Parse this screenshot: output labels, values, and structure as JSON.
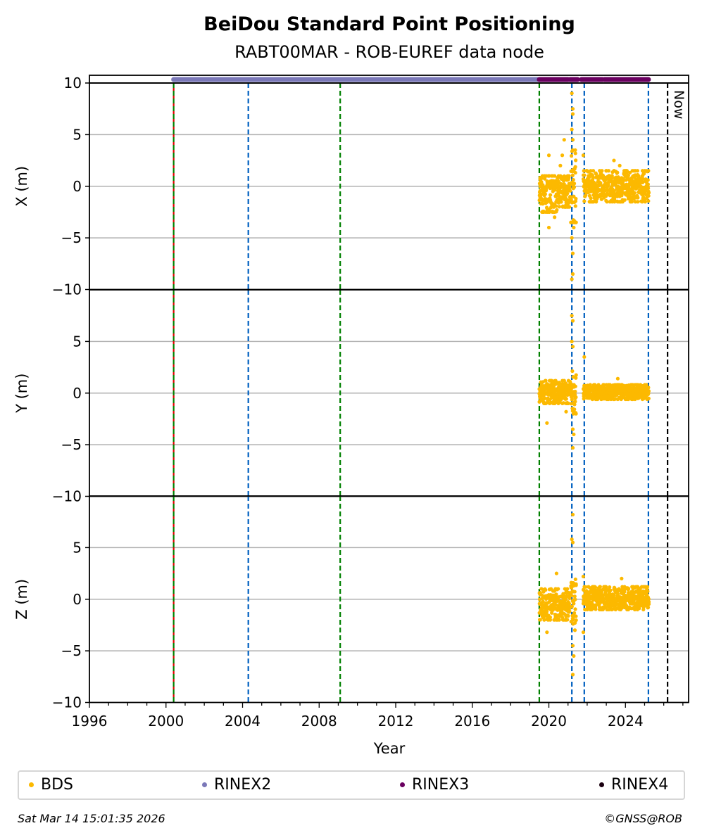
{
  "chart_data": {
    "type": "scatter",
    "title": "BeiDou Standard Point Positioning",
    "subtitle": "RABT00MAR - ROB-EUREF data node",
    "xlabel": "Year",
    "xlim": [
      1996,
      2027.3
    ],
    "x_ticks": [
      "1996",
      "2000",
      "2004",
      "2008",
      "2012",
      "2016",
      "2020",
      "2024"
    ],
    "x_tick_values": [
      1996,
      2000,
      2004,
      2008,
      2012,
      2016,
      2020,
      2024
    ],
    "grid": "horizontal",
    "panels": [
      {
        "ylabel": "X (m)",
        "ylim": [
          -10,
          10
        ],
        "y_ticks": [
          "10",
          "5",
          "0",
          "−5",
          "−10"
        ],
        "y_tick_values": [
          10,
          5,
          0,
          -5,
          -10
        ],
        "bands": [
          [
            2019.5,
            2020.5,
            -2.5,
            1.0
          ],
          [
            2020.5,
            2021.1,
            -2.0,
            1.0
          ],
          [
            2021.15,
            2021.4,
            -3.5,
            3.5
          ],
          [
            2021.8,
            2025.2,
            -1.5,
            1.5
          ]
        ],
        "outliers": [
          [
            2020.0,
            3.0
          ],
          [
            2020.0,
            -4.0
          ],
          [
            2020.3,
            -3.0
          ],
          [
            2020.6,
            2.0
          ],
          [
            2020.8,
            4.5
          ],
          [
            2020.7,
            3.0
          ],
          [
            2021.2,
            9.0
          ],
          [
            2021.25,
            7.5
          ],
          [
            2021.25,
            7.0
          ],
          [
            2021.2,
            5.5
          ],
          [
            2021.25,
            4.5
          ],
          [
            2021.2,
            -5.0
          ],
          [
            2021.25,
            -6.5
          ],
          [
            2021.25,
            -8.5
          ],
          [
            2021.2,
            -9.0
          ],
          [
            2021.3,
            -4.0
          ],
          [
            2021.8,
            3.0
          ],
          [
            2023.4,
            2.5
          ],
          [
            2023.7,
            2.0
          ]
        ]
      },
      {
        "ylabel": "Y (m)",
        "ylim": [
          -10,
          10
        ],
        "y_ticks": [
          "5",
          "0",
          "−5",
          "−10"
        ],
        "y_tick_values": [
          5,
          0,
          -5,
          -10
        ],
        "bands": [
          [
            2019.5,
            2021.1,
            -1.0,
            1.2
          ],
          [
            2021.15,
            2021.4,
            -2.0,
            2.5
          ],
          [
            2021.8,
            2025.2,
            -0.6,
            0.8
          ]
        ],
        "outliers": [
          [
            2019.9,
            -2.9
          ],
          [
            2020.9,
            -1.8
          ],
          [
            2021.2,
            7.5
          ],
          [
            2021.25,
            7.0
          ],
          [
            2021.2,
            5.0
          ],
          [
            2021.25,
            4.5
          ],
          [
            2021.25,
            -3.5
          ],
          [
            2021.25,
            -5.3
          ],
          [
            2021.3,
            -4.0
          ],
          [
            2021.85,
            3.5
          ],
          [
            2023.6,
            1.4
          ]
        ]
      },
      {
        "ylabel": "Z (m)",
        "ylim": [
          -10,
          10
        ],
        "y_ticks": [
          "5",
          "0",
          "−5",
          "−10"
        ],
        "y_tick_values": [
          5,
          0,
          -5,
          -10
        ],
        "bands": [
          [
            2019.5,
            2021.1,
            -2.0,
            1.0
          ],
          [
            2021.15,
            2021.4,
            -3.0,
            3.0
          ],
          [
            2021.8,
            2025.2,
            -1.0,
            1.2
          ]
        ],
        "outliers": [
          [
            2019.9,
            -3.2
          ],
          [
            2020.4,
            2.5
          ],
          [
            2021.25,
            8.2
          ],
          [
            2021.2,
            5.8
          ],
          [
            2021.25,
            5.5
          ],
          [
            2021.25,
            -4.5
          ],
          [
            2021.25,
            -7.3
          ],
          [
            2021.3,
            -5.5
          ],
          [
            2021.8,
            2.2
          ],
          [
            2021.8,
            -3.2
          ],
          [
            2023.8,
            2.0
          ]
        ]
      }
    ],
    "availability": {
      "RINEX2": [
        [
          2000.4,
          2019.4
        ]
      ],
      "RINEX3": [
        [
          2019.5,
          2021.0
        ],
        [
          2021.1,
          2021.5
        ],
        [
          2021.7,
          2022.8
        ],
        [
          2022.9,
          2025.2
        ]
      ]
    },
    "vlines": [
      {
        "x": 2000.4,
        "color": "#008000",
        "style": "red-green"
      },
      {
        "x": 2004.3,
        "color": "#0060c0"
      },
      {
        "x": 2009.1,
        "color": "#008000"
      },
      {
        "x": 2019.5,
        "color": "#008000"
      },
      {
        "x": 2021.2,
        "color": "#0060c0"
      },
      {
        "x": 2021.85,
        "color": "#0060c0"
      },
      {
        "x": 2025.2,
        "color": "#0060c0"
      },
      {
        "x": 2026.2,
        "color": "#000000",
        "label": "Now"
      }
    ],
    "legend": [
      {
        "label": "BDS",
        "color": "#fcb900"
      },
      {
        "label": "RINEX2",
        "color": "#7b78b8"
      },
      {
        "label": "RINEX3",
        "color": "#6a0060"
      },
      {
        "label": "RINEX4",
        "color": "#1a0010"
      }
    ],
    "legend_placement": "bottom"
  },
  "footer": {
    "timestamp": "Sat Mar 14 15:01:35 2026",
    "credit": "©GNSS@ROB"
  }
}
